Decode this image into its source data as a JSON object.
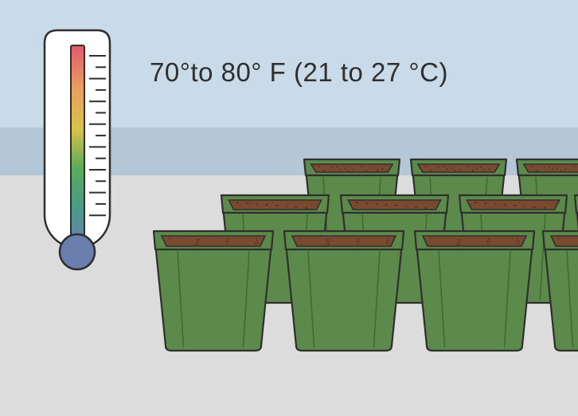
{
  "temperature_label": "70°to 80° F (21 to 27 °C)",
  "icons": {
    "thermometer": "thermometer-icon",
    "pot": "seedling-pot-icon"
  },
  "colors": {
    "sky": "#c9dbe8",
    "horizon_band": "#b3c7d6",
    "floor": "#dcdcdc",
    "pot_green": "#5c8a4a",
    "pot_dark": "#3e6b34",
    "soil": "#7a4a30",
    "thermometer_bulb": "#6b7fae"
  }
}
